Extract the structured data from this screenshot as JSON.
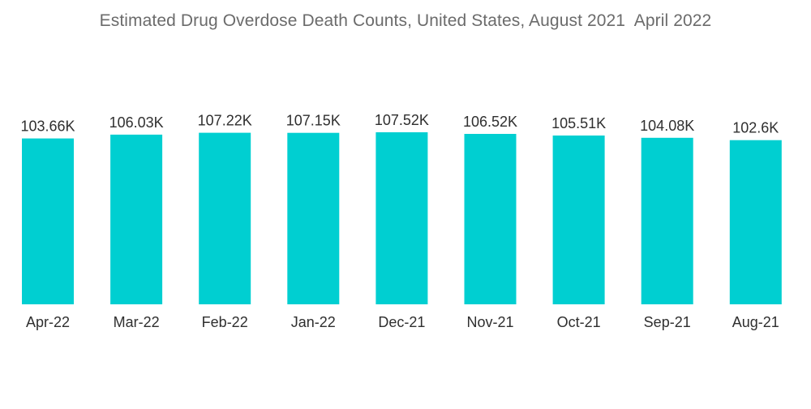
{
  "chart_data": {
    "type": "bar",
    "title": "Estimated Drug Overdose Death Counts, United States, August 2021  April 2022",
    "categories": [
      "Apr-22",
      "Mar-22",
      "Feb-22",
      "Jan-22",
      "Dec-21",
      "Nov-21",
      "Oct-21",
      "Sep-21",
      "Aug-21"
    ],
    "values": [
      103.66,
      106.03,
      107.22,
      107.15,
      107.52,
      106.52,
      105.51,
      104.08,
      102.6
    ],
    "data_labels": [
      "103.66K",
      "106.03K",
      "107.22K",
      "107.15K",
      "107.52K",
      "106.52K",
      "105.51K",
      "104.08K",
      "102.6K"
    ],
    "unit": "K",
    "xlabel": "",
    "ylabel": "",
    "ylim": [
      0,
      107.52
    ],
    "grid": false,
    "legend": "none",
    "bar_color": "#00cfd1"
  }
}
